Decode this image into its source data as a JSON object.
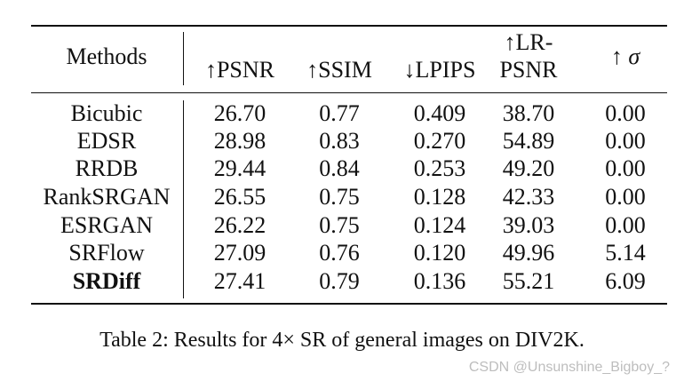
{
  "table": {
    "headers": {
      "methods": "Methods",
      "psnr": "↑PSNR",
      "ssim": "↑SSIM",
      "lpips": "↓LPIPS",
      "lr_psnr_line1": "↑LR-",
      "lr_psnr_line2": "PSNR",
      "sigma_arrow": "↑ ",
      "sigma_symbol": "σ"
    },
    "rows": [
      {
        "method": "Bicubic",
        "psnr": "26.70",
        "ssim": "0.77",
        "lpips": "0.409",
        "lr_psnr": "38.70",
        "sigma": "0.00"
      },
      {
        "method": "EDSR",
        "psnr": "28.98",
        "ssim": "0.83",
        "lpips": "0.270",
        "lr_psnr": "54.89",
        "sigma": "0.00"
      },
      {
        "method": "RRDB",
        "psnr": "29.44",
        "ssim": "0.84",
        "lpips": "0.253",
        "lr_psnr": "49.20",
        "sigma": "0.00"
      },
      {
        "method": "RankSRGAN",
        "psnr": "26.55",
        "ssim": "0.75",
        "lpips": "0.128",
        "lr_psnr": "42.33",
        "sigma": "0.00"
      },
      {
        "method": "ESRGAN",
        "psnr": "26.22",
        "ssim": "0.75",
        "lpips": "0.124",
        "lr_psnr": "39.03",
        "sigma": "0.00"
      },
      {
        "method": "SRFlow",
        "psnr": "27.09",
        "ssim": "0.76",
        "lpips": "0.120",
        "lr_psnr": "49.96",
        "sigma": "5.14"
      },
      {
        "method": "SRDiff",
        "psnr": "27.41",
        "ssim": "0.79",
        "lpips": "0.136",
        "lr_psnr": "55.21",
        "sigma": "6.09"
      }
    ]
  },
  "caption": "Table 2: Results for 4× SR of general images on DIV2K.",
  "watermark": "CSDN @Unsunshine_Bigboy_?"
}
